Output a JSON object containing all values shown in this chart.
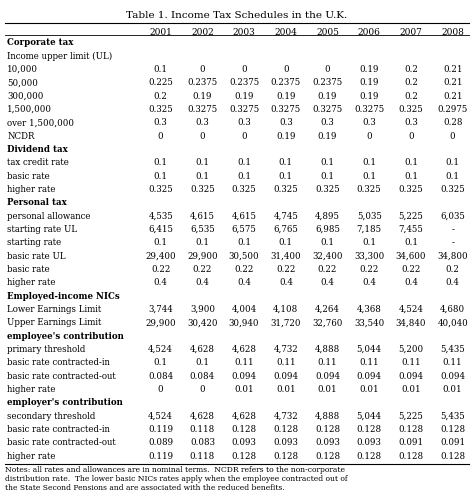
{
  "title": "Table 1. Income Tax Schedules in the U.K.",
  "columns": [
    "",
    "2001",
    "2002",
    "2003",
    "2004",
    "2005",
    "2006",
    "2007",
    "2008"
  ],
  "rows": [
    {
      "label": "Corporate tax",
      "bold": true,
      "header": true,
      "values": [
        "",
        "",
        "",
        "",
        "",
        "",
        "",
        ""
      ]
    },
    {
      "label": "Income upper limit (UL)",
      "bold": false,
      "header": true,
      "values": [
        "",
        "",
        "",
        "",
        "",
        "",
        "",
        ""
      ]
    },
    {
      "label": "10,000",
      "bold": false,
      "header": false,
      "values": [
        "0.1",
        "0",
        "0",
        "0",
        "0",
        "0.19",
        "0.2",
        "0.21"
      ]
    },
    {
      "label": "50,000",
      "bold": false,
      "header": false,
      "values": [
        "0.225",
        "0.2375",
        "0.2375",
        "0.2375",
        "0.2375",
        "0.19",
        "0.2",
        "0.21"
      ]
    },
    {
      "label": "300,000",
      "bold": false,
      "header": false,
      "values": [
        "0.2",
        "0.19",
        "0.19",
        "0.19",
        "0.19",
        "0.19",
        "0.2",
        "0.21"
      ]
    },
    {
      "label": "1,500,000",
      "bold": false,
      "header": false,
      "values": [
        "0.325",
        "0.3275",
        "0.3275",
        "0.3275",
        "0.3275",
        "0.3275",
        "0.325",
        "0.2975"
      ]
    },
    {
      "label": "over 1,500,000",
      "bold": false,
      "header": false,
      "values": [
        "0.3",
        "0.3",
        "0.3",
        "0.3",
        "0.3",
        "0.3",
        "0.3",
        "0.28"
      ]
    },
    {
      "label": "NCDR",
      "bold": false,
      "header": false,
      "values": [
        "0",
        "0",
        "0",
        "0.19",
        "0.19",
        "0",
        "0",
        "0"
      ]
    },
    {
      "label": "Dividend tax",
      "bold": true,
      "header": true,
      "values": [
        "",
        "",
        "",
        "",
        "",
        "",
        "",
        ""
      ]
    },
    {
      "label": "tax credit rate",
      "bold": false,
      "header": false,
      "values": [
        "0.1",
        "0.1",
        "0.1",
        "0.1",
        "0.1",
        "0.1",
        "0.1",
        "0.1"
      ]
    },
    {
      "label": "basic rate",
      "bold": false,
      "header": false,
      "values": [
        "0.1",
        "0.1",
        "0.1",
        "0.1",
        "0.1",
        "0.1",
        "0.1",
        "0.1"
      ]
    },
    {
      "label": "higher rate",
      "bold": false,
      "header": false,
      "values": [
        "0.325",
        "0.325",
        "0.325",
        "0.325",
        "0.325",
        "0.325",
        "0.325",
        "0.325"
      ]
    },
    {
      "label": "Personal tax",
      "bold": true,
      "header": true,
      "values": [
        "",
        "",
        "",
        "",
        "",
        "",
        "",
        ""
      ]
    },
    {
      "label": "personal allowance",
      "bold": false,
      "header": false,
      "values": [
        "4,535",
        "4,615",
        "4,615",
        "4,745",
        "4,895",
        "5,035",
        "5,225",
        "6,035"
      ]
    },
    {
      "label": "starting rate UL",
      "bold": false,
      "header": false,
      "values": [
        "6,415",
        "6,535",
        "6,575",
        "6,765",
        "6,985",
        "7,185",
        "7,455",
        "-"
      ]
    },
    {
      "label": "starting rate",
      "bold": false,
      "header": false,
      "values": [
        "0.1",
        "0.1",
        "0.1",
        "0.1",
        "0.1",
        "0.1",
        "0.1",
        "-"
      ]
    },
    {
      "label": "basic rate UL",
      "bold": false,
      "header": false,
      "values": [
        "29,400",
        "29,900",
        "30,500",
        "31,400",
        "32,400",
        "33,300",
        "34,600",
        "34,800"
      ]
    },
    {
      "label": "basic rate",
      "bold": false,
      "header": false,
      "values": [
        "0.22",
        "0.22",
        "0.22",
        "0.22",
        "0.22",
        "0.22",
        "0.22",
        "0.2"
      ]
    },
    {
      "label": "higher rate",
      "bold": false,
      "header": false,
      "values": [
        "0.4",
        "0.4",
        "0.4",
        "0.4",
        "0.4",
        "0.4",
        "0.4",
        "0.4"
      ]
    },
    {
      "label": "Employed-income NICs",
      "bold": true,
      "header": true,
      "values": [
        "",
        "",
        "",
        "",
        "",
        "",
        "",
        ""
      ]
    },
    {
      "label": "Lower Earnings Limit",
      "bold": false,
      "header": false,
      "values": [
        "3,744",
        "3,900",
        "4,004",
        "4,108",
        "4,264",
        "4,368",
        "4,524",
        "4,680"
      ]
    },
    {
      "label": "Upper Earnings Limit",
      "bold": false,
      "header": false,
      "values": [
        "29,900",
        "30,420",
        "30,940",
        "31,720",
        "32,760",
        "33,540",
        "34,840",
        "40,040"
      ]
    },
    {
      "label": "employee's contribution",
      "bold": true,
      "header": true,
      "values": [
        "",
        "",
        "",
        "",
        "",
        "",
        "",
        ""
      ]
    },
    {
      "label": "primary threshold",
      "bold": false,
      "header": false,
      "values": [
        "4,524",
        "4,628",
        "4,628",
        "4,732",
        "4,888",
        "5,044",
        "5,200",
        "5,435"
      ]
    },
    {
      "label": "basic rate contracted-in",
      "bold": false,
      "header": false,
      "values": [
        "0.1",
        "0.1",
        "0.11",
        "0.11",
        "0.11",
        "0.11",
        "0.11",
        "0.11"
      ]
    },
    {
      "label": "basic rate contracted-out",
      "bold": false,
      "header": false,
      "values": [
        "0.084",
        "0.084",
        "0.094",
        "0.094",
        "0.094",
        "0.094",
        "0.094",
        "0.094"
      ]
    },
    {
      "label": "higher rate",
      "bold": false,
      "header": false,
      "values": [
        "0",
        "0",
        "0.01",
        "0.01",
        "0.01",
        "0.01",
        "0.01",
        "0.01"
      ]
    },
    {
      "label": "employer's contribution",
      "bold": true,
      "header": true,
      "values": [
        "",
        "",
        "",
        "",
        "",
        "",
        "",
        ""
      ]
    },
    {
      "label": "secondary threshold",
      "bold": false,
      "header": false,
      "values": [
        "4,524",
        "4,628",
        "4,628",
        "4,732",
        "4,888",
        "5,044",
        "5,225",
        "5,435"
      ]
    },
    {
      "label": "basic rate contracted-in",
      "bold": false,
      "header": false,
      "values": [
        "0.119",
        "0.118",
        "0.128",
        "0.128",
        "0.128",
        "0.128",
        "0.128",
        "0.128"
      ]
    },
    {
      "label": "basic rate contracted-out",
      "bold": false,
      "header": false,
      "values": [
        "0.089",
        "0.083",
        "0.093",
        "0.093",
        "0.093",
        "0.093",
        "0.091",
        "0.091"
      ]
    },
    {
      "label": "higher rate",
      "bold": false,
      "header": false,
      "values": [
        "0.119",
        "0.118",
        "0.128",
        "0.128",
        "0.128",
        "0.128",
        "0.128",
        "0.128"
      ]
    }
  ],
  "notes": "Notes: all rates and allowances are in nominal terms.  NCDR refers to the non-corporate\ndistribution rate.  The lower basic NICs rates apply when the employee contracted out of\nthe State Second Pensions and are associated with the reduced benefits.",
  "bg_color": "#ffffff",
  "text_color": "#000000"
}
